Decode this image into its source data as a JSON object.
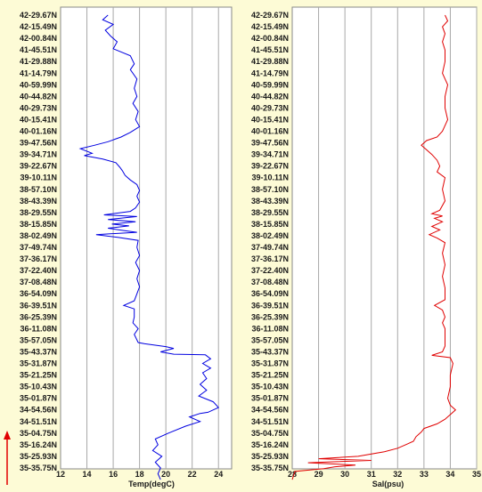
{
  "arrow_color": "#e00000",
  "chart_data": [
    {
      "type": "line",
      "xlabel": "Temp(degC)",
      "xlim": [
        12,
        25
      ],
      "xticks": [
        12,
        14,
        16,
        18,
        20,
        22,
        24
      ],
      "color": "#0000e0",
      "lat_labels": [
        "42-29.67N",
        "42-15.49N",
        "42-00.84N",
        "41-45.51N",
        "41-29.88N",
        "41-14.79N",
        "40-59.99N",
        "40-44.82N",
        "40-29.73N",
        "40-15.41N",
        "40-01.16N",
        "39-47.56N",
        "39-34.71N",
        "39-22.67N",
        "39-10.11N",
        "38-57.10N",
        "38-43.39N",
        "38-29.55N",
        "38-15.85N",
        "38-02.49N",
        "37-49.74N",
        "37-36.17N",
        "37-22.40N",
        "37-08.48N",
        "36-54.09N",
        "36-39.51N",
        "36-25.39N",
        "36-11.08N",
        "35-57.05N",
        "35-43.37N",
        "35-31.87N",
        "35-21.25N",
        "35-10.43N",
        "35-01.87N",
        "34-54.56N",
        "34-51.51N",
        "35-04.75N",
        "35-16.24N",
        "35-25.93N",
        "35-35.75N"
      ],
      "series": [
        {
          "points": [
            [
              15.6,
              0
            ],
            [
              15.2,
              0.4
            ],
            [
              16.0,
              0.8
            ],
            [
              15.4,
              1.3
            ],
            [
              15.8,
              1.8
            ],
            [
              16.3,
              2.3
            ],
            [
              16.0,
              2.9
            ],
            [
              17.3,
              3.5
            ],
            [
              17.6,
              4.2
            ],
            [
              17.3,
              4.7
            ],
            [
              17.8,
              5.5
            ],
            [
              17.6,
              6.3
            ],
            [
              17.8,
              7.0
            ],
            [
              17.5,
              7.6
            ],
            [
              17.9,
              8.3
            ],
            [
              17.7,
              9.0
            ],
            [
              18.0,
              9.6
            ],
            [
              17.3,
              10.1
            ],
            [
              16.6,
              10.5
            ],
            [
              15.6,
              10.9
            ],
            [
              14.6,
              11.2
            ],
            [
              13.5,
              11.5
            ],
            [
              14.4,
              11.9
            ],
            [
              13.8,
              12.1
            ],
            [
              15.2,
              12.4
            ],
            [
              16.2,
              12.7
            ],
            [
              16.5,
              13.1
            ],
            [
              16.7,
              13.4
            ],
            [
              16.9,
              13.8
            ],
            [
              17.3,
              14.2
            ],
            [
              17.8,
              14.6
            ],
            [
              18.0,
              15.1
            ],
            [
              17.8,
              15.6
            ],
            [
              18.0,
              16.1
            ],
            [
              17.7,
              16.6
            ],
            [
              17.3,
              16.9
            ],
            [
              15.3,
              17.2
            ],
            [
              17.8,
              17.35
            ],
            [
              15.6,
              17.6
            ],
            [
              17.7,
              17.8
            ],
            [
              15.9,
              18.0
            ],
            [
              17.2,
              18.15
            ],
            [
              15.6,
              18.35
            ],
            [
              16.8,
              18.55
            ],
            [
              17.8,
              18.7
            ],
            [
              14.7,
              18.9
            ],
            [
              16.4,
              19.15
            ],
            [
              17.9,
              19.4
            ],
            [
              17.8,
              20.0
            ],
            [
              18.0,
              20.7
            ],
            [
              17.7,
              21.3
            ],
            [
              18.0,
              22.0
            ],
            [
              17.8,
              22.7
            ],
            [
              18.0,
              23.4
            ],
            [
              17.8,
              24.0
            ],
            [
              17.6,
              24.6
            ],
            [
              16.8,
              25.0
            ],
            [
              17.6,
              25.3
            ],
            [
              17.6,
              26.0
            ],
            [
              17.5,
              26.5
            ],
            [
              17.9,
              27.0
            ],
            [
              17.6,
              27.5
            ],
            [
              17.9,
              28.2
            ],
            [
              18.4,
              28.3
            ],
            [
              20.0,
              28.55
            ],
            [
              20.6,
              28.7
            ],
            [
              19.6,
              29.0
            ],
            [
              20.6,
              29.2
            ],
            [
              23.0,
              29.25
            ],
            [
              23.4,
              29.6
            ],
            [
              22.8,
              30.0
            ],
            [
              23.4,
              30.4
            ],
            [
              22.8,
              30.8
            ],
            [
              23.1,
              31.3
            ],
            [
              22.6,
              31.8
            ],
            [
              23.1,
              32.3
            ],
            [
              22.5,
              32.8
            ],
            [
              23.6,
              33.3
            ],
            [
              24.0,
              33.8
            ],
            [
              23.2,
              34.2
            ],
            [
              22.6,
              34.3
            ],
            [
              21.8,
              34.6
            ],
            [
              22.6,
              35.0
            ],
            [
              21.5,
              35.4
            ],
            [
              20.2,
              36.0
            ],
            [
              19.2,
              36.5
            ],
            [
              19.4,
              37.0
            ],
            [
              19.0,
              37.5
            ],
            [
              19.7,
              38.0
            ],
            [
              19.2,
              38.5
            ],
            [
              19.6,
              39.0
            ],
            [
              19.4,
              39.5
            ],
            [
              19.6,
              40
            ]
          ]
        }
      ]
    },
    {
      "type": "line",
      "xlabel": "Sal(psu)",
      "xlim": [
        28,
        35
      ],
      "xticks": [
        28,
        29,
        30,
        31,
        32,
        33,
        34,
        35
      ],
      "color": "#e00000",
      "lat_labels": [
        "42-29.67N",
        "42-15.49N",
        "42-00.84N",
        "41-45.51N",
        "41-29.88N",
        "41-14.79N",
        "40-59.99N",
        "40-44.82N",
        "40-29.73N",
        "40-15.41N",
        "40-01.16N",
        "39-47.56N",
        "39-34.71N",
        "39-22.67N",
        "39-10.11N",
        "38-57.10N",
        "38-43.39N",
        "38-29.55N",
        "38-15.85N",
        "38-02.49N",
        "37-49.74N",
        "37-36.17N",
        "37-22.40N",
        "37-08.48N",
        "36-54.09N",
        "36-39.51N",
        "36-25.39N",
        "36-11.08N",
        "35-57.05N",
        "35-43.37N",
        "35-31.87N",
        "35-21.25N",
        "35-10.43N",
        "35-01.87N",
        "34-54.56N",
        "34-51.51N",
        "35-04.75N",
        "35-16.24N",
        "35-25.93N",
        "35-35.75N"
      ],
      "series": [
        {
          "points": [
            [
              33.8,
              0
            ],
            [
              33.9,
              0.5
            ],
            [
              33.7,
              1.0
            ],
            [
              33.8,
              1.6
            ],
            [
              33.7,
              2.3
            ],
            [
              33.8,
              3.0
            ],
            [
              33.8,
              4.0
            ],
            [
              33.7,
              5.0
            ],
            [
              33.9,
              6.0
            ],
            [
              33.8,
              7.0
            ],
            [
              33.8,
              8.0
            ],
            [
              33.9,
              9.0
            ],
            [
              33.7,
              10.0
            ],
            [
              33.5,
              10.5
            ],
            [
              33.1,
              10.8
            ],
            [
              32.9,
              11.2
            ],
            [
              33.1,
              11.6
            ],
            [
              33.3,
              12.0
            ],
            [
              33.5,
              12.5
            ],
            [
              33.6,
              13.0
            ],
            [
              33.5,
              13.5
            ],
            [
              33.8,
              14.0
            ],
            [
              33.7,
              15.0
            ],
            [
              33.8,
              16.0
            ],
            [
              33.6,
              16.8
            ],
            [
              33.3,
              17.1
            ],
            [
              33.7,
              17.3
            ],
            [
              33.4,
              17.5
            ],
            [
              33.7,
              17.8
            ],
            [
              33.3,
              18.2
            ],
            [
              33.6,
              18.5
            ],
            [
              33.2,
              18.9
            ],
            [
              33.5,
              19.2
            ],
            [
              33.8,
              19.6
            ],
            [
              33.7,
              20.5
            ],
            [
              33.8,
              21.5
            ],
            [
              33.7,
              22.5
            ],
            [
              33.8,
              23.5
            ],
            [
              33.8,
              24.5
            ],
            [
              33.4,
              25.0
            ],
            [
              33.7,
              25.4
            ],
            [
              33.8,
              26.0
            ],
            [
              33.7,
              26.5
            ],
            [
              33.8,
              27.0
            ],
            [
              33.8,
              28.0
            ],
            [
              33.8,
              28.5
            ],
            [
              33.7,
              29.0
            ],
            [
              33.3,
              29.3
            ],
            [
              34.0,
              29.5
            ],
            [
              34.1,
              30.0
            ],
            [
              34.0,
              31.0
            ],
            [
              34.0,
              32.0
            ],
            [
              33.9,
              33.0
            ],
            [
              34.0,
              33.6
            ],
            [
              34.2,
              34.0
            ],
            [
              34.0,
              34.4
            ],
            [
              33.8,
              34.8
            ],
            [
              33.5,
              35.2
            ],
            [
              33.0,
              35.6
            ],
            [
              32.9,
              35.9
            ],
            [
              32.7,
              36.3
            ],
            [
              32.6,
              36.7
            ],
            [
              32.3,
              37.0
            ],
            [
              32.0,
              37.3
            ],
            [
              31.5,
              37.6
            ],
            [
              30.5,
              38.0
            ],
            [
              29.0,
              38.2
            ],
            [
              31.0,
              38.35
            ],
            [
              28.6,
              38.55
            ],
            [
              30.4,
              38.75
            ],
            [
              29.6,
              38.9
            ],
            [
              29.2,
              39.05
            ],
            [
              28.1,
              39.3
            ],
            [
              28.0,
              40
            ]
          ]
        }
      ]
    }
  ]
}
